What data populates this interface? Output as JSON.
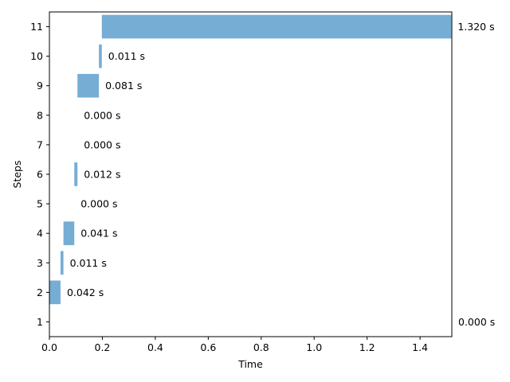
{
  "chart_data": {
    "type": "bar",
    "orientation": "horizontal",
    "stacked_offsets": true,
    "xlabel": "Time",
    "ylabel": "Steps",
    "xlim": [
      0,
      1.52
    ],
    "xticks": [
      "0.0",
      "0.2",
      "0.4",
      "0.6",
      "0.8",
      "1.0",
      "1.2",
      "1.4"
    ],
    "categories": [
      "1",
      "2",
      "3",
      "4",
      "5",
      "6",
      "7",
      "8",
      "9",
      "10",
      "11"
    ],
    "starts": [
      1.52,
      0.0,
      0.042,
      0.053,
      0.094,
      0.094,
      0.106,
      0.106,
      0.106,
      0.187,
      0.198
    ],
    "values": [
      0.0,
      0.042,
      0.011,
      0.041,
      0.0,
      0.012,
      0.0,
      0.0,
      0.081,
      0.011,
      1.32
    ],
    "labels": [
      "0.000 s",
      "0.042 s",
      "0.011 s",
      "0.041 s",
      "0.000 s",
      "0.012 s",
      "0.000 s",
      "0.000 s",
      "0.081 s",
      "0.011 s",
      "1.320 s"
    ],
    "bar_color": "#76add4"
  }
}
